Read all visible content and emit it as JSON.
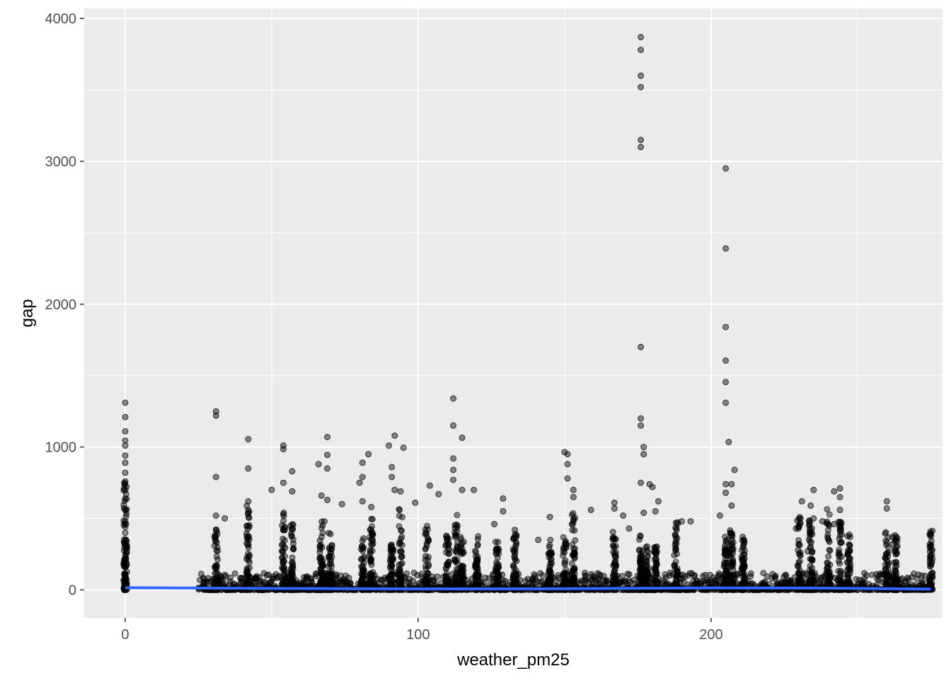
{
  "chart_data": {
    "type": "scatter",
    "title": "",
    "xlabel": "weather_pm25",
    "ylabel": "gap",
    "xlim": [
      -14,
      279
    ],
    "ylim": [
      -196,
      4070
    ],
    "x_ticks": [
      0,
      100,
      200
    ],
    "x_tick_labels": [
      "0",
      "100",
      "200"
    ],
    "y_ticks": [
      0,
      1000,
      2000,
      3000,
      4000
    ],
    "y_tick_labels": [
      "0",
      "1000",
      "2000",
      "3000",
      "4000"
    ],
    "grid": true,
    "legend": "none",
    "panel_background": "#ebebeb",
    "grid_color": "#ffffff",
    "point_color": "#000000",
    "point_opacity": 0.45,
    "smooth_line_color": "#3366ff",
    "x_clusters": [
      0,
      31,
      42,
      54,
      57,
      67,
      70,
      81,
      84,
      91,
      94,
      103,
      110,
      113,
      115,
      120,
      127,
      133,
      145,
      150,
      153,
      167,
      176,
      178,
      181,
      188,
      205,
      207,
      211,
      230,
      234,
      240,
      244,
      247,
      260,
      263,
      275
    ],
    "points": [
      {
        "x": 0,
        "y": 1310
      },
      {
        "x": 0,
        "y": 1210
      },
      {
        "x": 0,
        "y": 1110
      },
      {
        "x": 0,
        "y": 1045
      },
      {
        "x": 0,
        "y": 1010
      },
      {
        "x": 0,
        "y": 940
      },
      {
        "x": 0,
        "y": 890
      },
      {
        "x": 0,
        "y": 820
      },
      {
        "x": 0,
        "y": 760
      },
      {
        "x": 0,
        "y": 700
      },
      {
        "x": 0,
        "y": 640
      },
      {
        "x": 0,
        "y": 560
      },
      {
        "x": 0,
        "y": 480
      },
      {
        "x": 0,
        "y": 400
      },
      {
        "x": 0,
        "y": 320
      },
      {
        "x": 0,
        "y": 240
      },
      {
        "x": 0,
        "y": 160
      },
      {
        "x": 0,
        "y": 80
      },
      {
        "x": 31,
        "y": 1250
      },
      {
        "x": 31,
        "y": 1220
      },
      {
        "x": 31,
        "y": 790
      },
      {
        "x": 31,
        "y": 520
      },
      {
        "x": 31,
        "y": 420
      },
      {
        "x": 34,
        "y": 500
      },
      {
        "x": 42,
        "y": 1055
      },
      {
        "x": 42,
        "y": 850
      },
      {
        "x": 42,
        "y": 620
      },
      {
        "x": 42,
        "y": 560
      },
      {
        "x": 50,
        "y": 700
      },
      {
        "x": 54,
        "y": 1010
      },
      {
        "x": 54,
        "y": 985
      },
      {
        "x": 54,
        "y": 750
      },
      {
        "x": 57,
        "y": 830
      },
      {
        "x": 57,
        "y": 690
      },
      {
        "x": 66,
        "y": 880
      },
      {
        "x": 67,
        "y": 660
      },
      {
        "x": 68,
        "y": 480
      },
      {
        "x": 69,
        "y": 1070
      },
      {
        "x": 69,
        "y": 945
      },
      {
        "x": 69,
        "y": 850
      },
      {
        "x": 69,
        "y": 630
      },
      {
        "x": 74,
        "y": 600
      },
      {
        "x": 81,
        "y": 890
      },
      {
        "x": 81,
        "y": 790
      },
      {
        "x": 80,
        "y": 750
      },
      {
        "x": 81,
        "y": 620
      },
      {
        "x": 83,
        "y": 950
      },
      {
        "x": 84,
        "y": 580
      },
      {
        "x": 90,
        "y": 1010
      },
      {
        "x": 91,
        "y": 860
      },
      {
        "x": 91,
        "y": 790
      },
      {
        "x": 92,
        "y": 1080
      },
      {
        "x": 92,
        "y": 700
      },
      {
        "x": 95,
        "y": 995
      },
      {
        "x": 94,
        "y": 690
      },
      {
        "x": 99,
        "y": 610
      },
      {
        "x": 104,
        "y": 730
      },
      {
        "x": 107,
        "y": 670
      },
      {
        "x": 112,
        "y": 1340
      },
      {
        "x": 112,
        "y": 1150
      },
      {
        "x": 112,
        "y": 920
      },
      {
        "x": 112,
        "y": 840
      },
      {
        "x": 112,
        "y": 770
      },
      {
        "x": 115,
        "y": 1065
      },
      {
        "x": 115,
        "y": 700
      },
      {
        "x": 119,
        "y": 700
      },
      {
        "x": 126,
        "y": 460
      },
      {
        "x": 129,
        "y": 640
      },
      {
        "x": 129,
        "y": 550
      },
      {
        "x": 133,
        "y": 420
      },
      {
        "x": 141,
        "y": 350
      },
      {
        "x": 145,
        "y": 510
      },
      {
        "x": 150,
        "y": 965
      },
      {
        "x": 151,
        "y": 950
      },
      {
        "x": 151,
        "y": 880
      },
      {
        "x": 151,
        "y": 780
      },
      {
        "x": 153,
        "y": 700
      },
      {
        "x": 153,
        "y": 650
      },
      {
        "x": 159,
        "y": 560
      },
      {
        "x": 167,
        "y": 610
      },
      {
        "x": 167,
        "y": 570
      },
      {
        "x": 170,
        "y": 520
      },
      {
        "x": 172,
        "y": 430
      },
      {
        "x": 176,
        "y": 3870
      },
      {
        "x": 176,
        "y": 3780
      },
      {
        "x": 176,
        "y": 3600
      },
      {
        "x": 176,
        "y": 3520
      },
      {
        "x": 176,
        "y": 3150
      },
      {
        "x": 176,
        "y": 3100
      },
      {
        "x": 176,
        "y": 1700
      },
      {
        "x": 176,
        "y": 1200
      },
      {
        "x": 176,
        "y": 1150
      },
      {
        "x": 177,
        "y": 1000
      },
      {
        "x": 177,
        "y": 950
      },
      {
        "x": 176,
        "y": 750
      },
      {
        "x": 179,
        "y": 740
      },
      {
        "x": 180,
        "y": 720
      },
      {
        "x": 177,
        "y": 540
      },
      {
        "x": 182,
        "y": 620
      },
      {
        "x": 181,
        "y": 550
      },
      {
        "x": 188,
        "y": 470
      },
      {
        "x": 190,
        "y": 480
      },
      {
        "x": 193,
        "y": 480
      },
      {
        "x": 203,
        "y": 520
      },
      {
        "x": 205,
        "y": 2950
      },
      {
        "x": 205,
        "y": 2390
      },
      {
        "x": 205,
        "y": 1840
      },
      {
        "x": 205,
        "y": 1605
      },
      {
        "x": 205,
        "y": 1455
      },
      {
        "x": 205,
        "y": 1310
      },
      {
        "x": 206,
        "y": 1035
      },
      {
        "x": 205,
        "y": 740
      },
      {
        "x": 205,
        "y": 680
      },
      {
        "x": 207,
        "y": 740
      },
      {
        "x": 208,
        "y": 840
      },
      {
        "x": 207,
        "y": 590
      },
      {
        "x": 211,
        "y": 310
      },
      {
        "x": 229,
        "y": 430
      },
      {
        "x": 231,
        "y": 620
      },
      {
        "x": 233,
        "y": 270
      },
      {
        "x": 235,
        "y": 700
      },
      {
        "x": 234,
        "y": 590
      },
      {
        "x": 235,
        "y": 500
      },
      {
        "x": 238,
        "y": 480
      },
      {
        "x": 242,
        "y": 690
      },
      {
        "x": 242,
        "y": 460
      },
      {
        "x": 244,
        "y": 710
      },
      {
        "x": 244,
        "y": 650
      },
      {
        "x": 244,
        "y": 560
      },
      {
        "x": 244,
        "y": 470
      },
      {
        "x": 244,
        "y": 420
      },
      {
        "x": 260,
        "y": 620
      },
      {
        "x": 260,
        "y": 570
      },
      {
        "x": 262,
        "y": 370
      },
      {
        "x": 263,
        "y": 350
      },
      {
        "x": 262,
        "y": 320
      },
      {
        "x": 275,
        "y": 310
      },
      {
        "x": 275,
        "y": 240
      },
      {
        "x": 275,
        "y": 170
      }
    ],
    "smooth_line": [
      {
        "x": 0,
        "y": 15
      },
      {
        "x": 50,
        "y": 10
      },
      {
        "x": 100,
        "y": 7
      },
      {
        "x": 150,
        "y": 8
      },
      {
        "x": 200,
        "y": 14
      },
      {
        "x": 240,
        "y": 12
      },
      {
        "x": 275,
        "y": 6
      }
    ]
  }
}
